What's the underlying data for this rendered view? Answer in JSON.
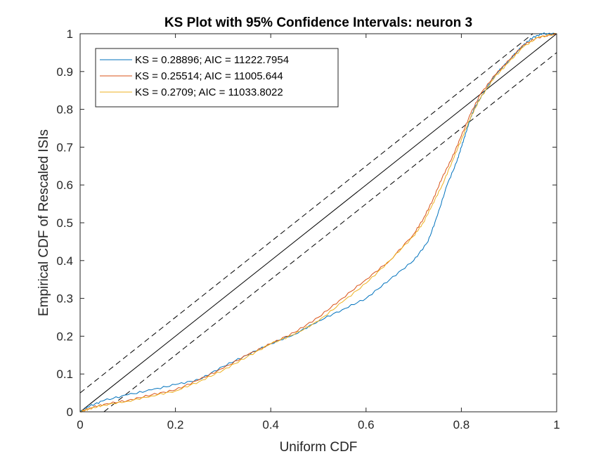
{
  "chart_data": {
    "type": "line",
    "title": "KS Plot with 95% Confidence Intervals: neuron 3",
    "xlabel": "Uniform CDF",
    "ylabel": "Empirical CDF of Rescaled ISIs",
    "xlim": [
      0,
      1
    ],
    "ylim": [
      0,
      1
    ],
    "xticks": [
      "0",
      "0.2",
      "0.4",
      "0.6",
      "0.8",
      "1"
    ],
    "yticks": [
      "0",
      "0.1",
      "0.2",
      "0.3",
      "0.4",
      "0.5",
      "0.6",
      "0.7",
      "0.8",
      "0.9",
      "1"
    ],
    "grid": false,
    "legend_position": "top-left",
    "reference_lines": [
      {
        "style": "solid",
        "color": "#000000",
        "x": [
          0,
          1
        ],
        "y": [
          0,
          1
        ]
      },
      {
        "style": "dashed",
        "color": "#000000",
        "x": [
          0,
          0.95
        ],
        "y": [
          0.05,
          1
        ]
      },
      {
        "style": "dashed",
        "color": "#000000",
        "x": [
          0.05,
          1
        ],
        "y": [
          0,
          0.95
        ]
      }
    ],
    "series": [
      {
        "name": "KS = 0.28896; AIC = 11222.7954",
        "color": "#0072BD",
        "x": [
          0,
          0.02,
          0.05,
          0.1,
          0.15,
          0.2,
          0.25,
          0.3,
          0.35,
          0.4,
          0.45,
          0.5,
          0.55,
          0.6,
          0.65,
          0.7,
          0.73,
          0.75,
          0.77,
          0.79,
          0.8,
          0.81,
          0.82,
          0.83,
          0.85,
          0.87,
          0.9,
          0.93,
          0.95,
          0.97,
          1
        ],
        "y": [
          0,
          0.015,
          0.03,
          0.045,
          0.058,
          0.072,
          0.085,
          0.12,
          0.15,
          0.18,
          0.205,
          0.24,
          0.27,
          0.3,
          0.35,
          0.4,
          0.45,
          0.52,
          0.6,
          0.66,
          0.7,
          0.74,
          0.78,
          0.81,
          0.85,
          0.89,
          0.93,
          0.97,
          0.99,
          1.0,
          1.0
        ]
      },
      {
        "name": "KS = 0.25514; AIC = 11005.644",
        "color": "#D95319",
        "x": [
          0,
          0.02,
          0.05,
          0.1,
          0.15,
          0.2,
          0.25,
          0.3,
          0.35,
          0.4,
          0.45,
          0.5,
          0.55,
          0.6,
          0.65,
          0.7,
          0.72,
          0.74,
          0.76,
          0.78,
          0.8,
          0.82,
          0.84,
          0.87,
          0.9,
          0.93,
          0.96,
          1
        ],
        "y": [
          0,
          0.01,
          0.02,
          0.03,
          0.045,
          0.058,
          0.085,
          0.115,
          0.15,
          0.18,
          0.21,
          0.25,
          0.3,
          0.35,
          0.4,
          0.47,
          0.51,
          0.56,
          0.62,
          0.67,
          0.73,
          0.79,
          0.84,
          0.89,
          0.93,
          0.97,
          0.99,
          1.0
        ]
      },
      {
        "name": "KS = 0.2709; AIC = 11033.8022",
        "color": "#EDB120",
        "x": [
          0,
          0.02,
          0.05,
          0.1,
          0.15,
          0.2,
          0.25,
          0.3,
          0.35,
          0.4,
          0.45,
          0.5,
          0.55,
          0.6,
          0.65,
          0.7,
          0.72,
          0.74,
          0.76,
          0.78,
          0.8,
          0.82,
          0.84,
          0.87,
          0.9,
          0.93,
          0.96,
          1
        ],
        "y": [
          0,
          0.008,
          0.018,
          0.028,
          0.042,
          0.055,
          0.08,
          0.11,
          0.145,
          0.18,
          0.205,
          0.24,
          0.29,
          0.34,
          0.4,
          0.465,
          0.5,
          0.55,
          0.6,
          0.66,
          0.72,
          0.78,
          0.83,
          0.885,
          0.925,
          0.965,
          0.99,
          1.0
        ]
      }
    ]
  }
}
